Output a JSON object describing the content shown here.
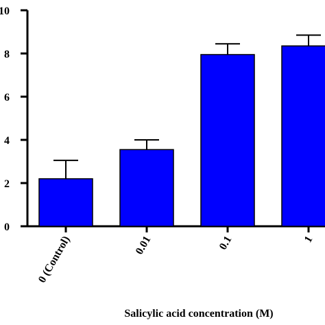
{
  "chart_data": {
    "type": "bar",
    "x_label": "Salicylic acid concentration (M)",
    "categories": [
      "0 (Control)",
      "0.01",
      "0.1",
      "1"
    ],
    "values": [
      2.2,
      3.55,
      7.95,
      8.35
    ],
    "errors": [
      0.85,
      0.45,
      0.5,
      0.5
    ],
    "color": "#0000ff",
    "ylim": [
      0,
      10
    ],
    "yticks": [
      0,
      2,
      4,
      6,
      8,
      10
    ]
  }
}
